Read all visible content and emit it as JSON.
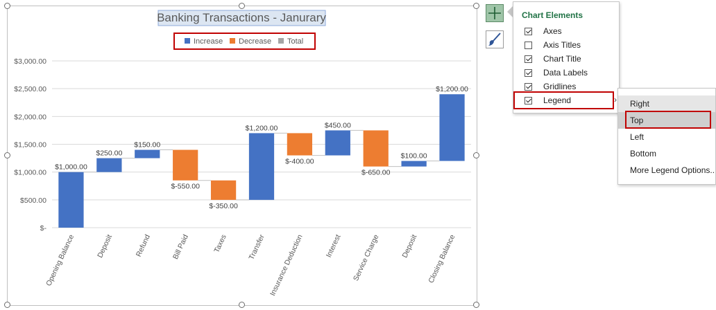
{
  "chart": {
    "title": "Banking Transactions - Janurary",
    "legend": [
      {
        "label": "Increase",
        "color": "#4472c4"
      },
      {
        "label": "Decrease",
        "color": "#ed7d31"
      },
      {
        "label": "Total",
        "color": "#a5a5a5"
      }
    ]
  },
  "chart_data": {
    "type": "bar",
    "subtype": "waterfall",
    "title": "Banking Transactions - Janurary",
    "xlabel": "",
    "ylabel": "",
    "ylim": [
      0,
      3000
    ],
    "yticks": [
      "$-",
      "$500.00",
      "$1,000.00",
      "$1,500.00",
      "$2,000.00",
      "$2,500.00",
      "$3,000.00"
    ],
    "grid": true,
    "legend_position": "top",
    "categories": [
      "Opening Balance",
      "Deposit",
      "Refund",
      "Bill Paid",
      "Taxes",
      "Transfer",
      "Insurance Deduction",
      "Interest",
      "Service Charge",
      "Deposit",
      "Closing Balance"
    ],
    "bars": [
      {
        "start": 0,
        "end": 1000,
        "type": "Increase",
        "label": "$1,000.00"
      },
      {
        "start": 1000,
        "end": 1250,
        "type": "Increase",
        "label": "$250.00"
      },
      {
        "start": 1250,
        "end": 1400,
        "type": "Increase",
        "label": "$150.00"
      },
      {
        "start": 1400,
        "end": 850,
        "type": "Decrease",
        "label": "$-550.00"
      },
      {
        "start": 850,
        "end": 500,
        "type": "Decrease",
        "label": "$-350.00"
      },
      {
        "start": 500,
        "end": 1700,
        "type": "Increase",
        "label": "$1,200.00"
      },
      {
        "start": 1700,
        "end": 1300,
        "type": "Decrease",
        "label": "$-400.00"
      },
      {
        "start": 1300,
        "end": 1750,
        "type": "Increase",
        "label": "$450.00"
      },
      {
        "start": 1750,
        "end": 1100,
        "type": "Decrease",
        "label": "$-650.00"
      },
      {
        "start": 1100,
        "end": 1200,
        "type": "Increase",
        "label": "$100.00"
      },
      {
        "start": 1200,
        "end": 2400,
        "type": "Increase",
        "label": "$1,200.00"
      }
    ],
    "colors": {
      "Increase": "#4472c4",
      "Decrease": "#ed7d31",
      "Total": "#a5a5a5"
    }
  },
  "chart_elements_panel": {
    "title": "Chart Elements",
    "items": [
      {
        "label": "Axes",
        "checked": true
      },
      {
        "label": "Axis Titles",
        "checked": false
      },
      {
        "label": "Chart Title",
        "checked": true
      },
      {
        "label": "Data Labels",
        "checked": true
      },
      {
        "label": "Gridlines",
        "checked": true
      },
      {
        "label": "Legend",
        "checked": true
      }
    ]
  },
  "legend_submenu": {
    "items": [
      "Right",
      "Top",
      "Left",
      "Bottom",
      "More Legend Options..."
    ]
  },
  "icons": {
    "add": "plus-icon",
    "style": "brush-icon",
    "submenu": "chevron-right-icon"
  }
}
